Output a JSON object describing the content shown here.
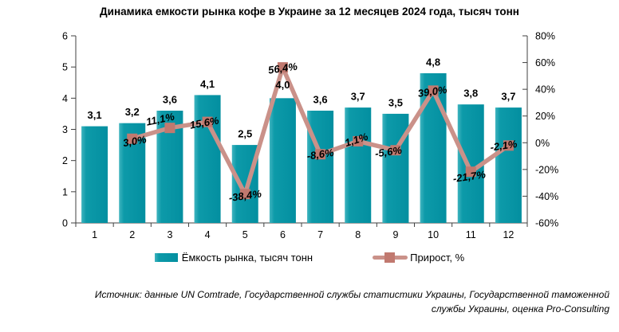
{
  "title": "Динамика емкости рынка кофе в Украине за 12 месяцев 2024 года, тысяч тонн",
  "chart_data": {
    "type": "bar+line combo",
    "title": "Динамика емкости рынка кофе в Украине за 12 месяцев 2024 года, тысяч тонн",
    "categories": [
      "1",
      "2",
      "3",
      "4",
      "5",
      "6",
      "7",
      "8",
      "9",
      "10",
      "11",
      "12"
    ],
    "series": [
      {
        "name": "Ёмкость рынка, тысяч тонн",
        "type": "bar",
        "axis": "left",
        "values": [
          3.1,
          3.2,
          3.6,
          4.1,
          2.5,
          4.0,
          3.6,
          3.7,
          3.5,
          4.8,
          3.8,
          3.7
        ],
        "labels": [
          "3,1",
          "3,2",
          "3,6",
          "4,1",
          "2,5",
          "4,0",
          "3,6",
          "3,7",
          "3,5",
          "4,8",
          "3,8",
          "3,7"
        ]
      },
      {
        "name": "Прирост, %",
        "type": "line",
        "axis": "right",
        "values": [
          null,
          3.0,
          11.1,
          15.6,
          -38.4,
          56.4,
          -8.6,
          1.1,
          -5.6,
          39.0,
          -21.7,
          -2.1
        ],
        "labels": [
          "",
          "3,0%",
          "11,1%",
          "15,6%",
          "-38,4%",
          "56,4%",
          "-8,6%",
          "1,1%",
          "-5,6%",
          "39,0%",
          "-21,7%",
          "-2,1%"
        ]
      }
    ],
    "left_axis": {
      "min": 0,
      "max": 6,
      "tick_values": [
        0,
        1,
        2,
        3,
        4,
        5,
        6
      ],
      "tick_labels": [
        "0",
        "1",
        "2",
        "3",
        "4",
        "5",
        "6"
      ]
    },
    "right_axis": {
      "min": -60,
      "max": 80,
      "tick_values": [
        80,
        60,
        40,
        20,
        0,
        -20,
        -40,
        -60
      ],
      "tick_labels": [
        "80%",
        "60%",
        "40%",
        "20%",
        "0%",
        "-20%",
        "-40%",
        "-60%"
      ]
    },
    "grid": false,
    "legend_position": "bottom"
  },
  "colors": {
    "bar_light": "#3fb4bf",
    "bar_mid": "#0d9aa9",
    "bar_dark": "#038fa0",
    "line": "#ca9189",
    "marker": "#c1796f",
    "axis": "#404040",
    "text": "#000000"
  },
  "legend": {
    "items": [
      {
        "label": "Ёмкость рынка, тысяч тонн",
        "swatch": "bar-swatch-teal"
      },
      {
        "label": "Прирост, %",
        "swatch": "line-swatch-salmon"
      }
    ]
  },
  "source": {
    "line1": "Источник: данные UN Comtrade, Государственной службы статистики Украины, Государственной таможенной",
    "line2": "службы Украины, оценка Pro-Consulting"
  }
}
